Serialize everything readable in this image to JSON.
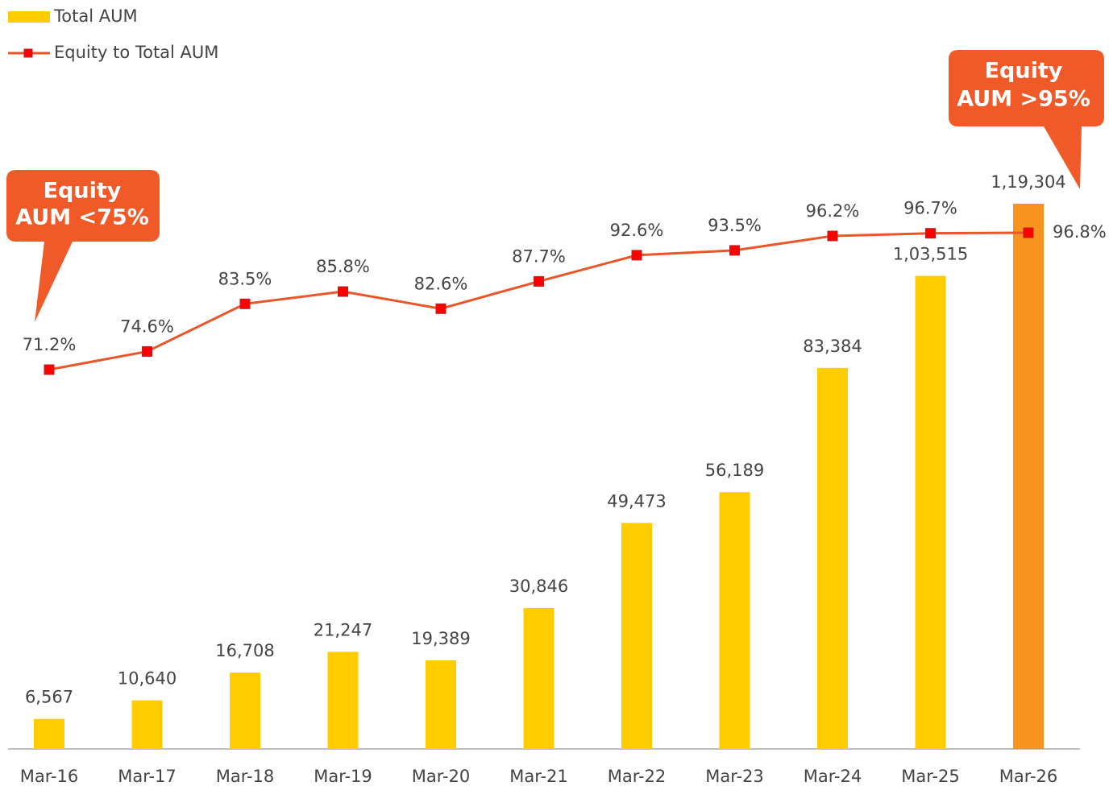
{
  "chart_data": {
    "type": "bar_line",
    "categories": [
      "Mar-16",
      "Mar-17",
      "Mar-18",
      "Mar-19",
      "Mar-20",
      "Mar-21",
      "Mar-22",
      "Mar-23",
      "Mar-24",
      "Mar-25",
      "Mar-26"
    ],
    "series": [
      {
        "name": "Total AUM",
        "type": "bar",
        "color": "#FFCC00",
        "colors": [
          "#FFCC00",
          "#FFCC00",
          "#FFCC00",
          "#FFCC00",
          "#FFCC00",
          "#FFCC00",
          "#FFCC00",
          "#FFCC00",
          "#FFCC00",
          "#FFCC00",
          "#F7941D"
        ],
        "values": [
          6567,
          10640,
          16708,
          21247,
          19389,
          30846,
          49473,
          56189,
          83384,
          103515,
          119304
        ],
        "value_labels": [
          "6,567",
          "10,640",
          "16,708",
          "21,247",
          "19,389",
          "30,846",
          "49,473",
          "56,189",
          "83,384",
          "1,03,515",
          "1,19,304"
        ]
      },
      {
        "name": "Equity to Total AUM",
        "type": "line",
        "color": "#E8562A",
        "marker_color": "#FF0000",
        "values": [
          71.2,
          74.6,
          83.5,
          85.8,
          82.6,
          87.7,
          92.6,
          93.5,
          96.2,
          96.7,
          96.8
        ],
        "value_labels": [
          "71.2%",
          "74.6%",
          "83.5%",
          "85.8%",
          "82.6%",
          "87.7%",
          "92.6%",
          "93.5%",
          "96.2%",
          "96.7%",
          "96.8%"
        ]
      }
    ],
    "annotations": [
      {
        "lines": [
          "Equity",
          "AUM  <75%"
        ],
        "color": "#F05A28"
      },
      {
        "lines": [
          "Equity",
          "AUM  >95%"
        ],
        "color": "#F05A28"
      }
    ]
  }
}
